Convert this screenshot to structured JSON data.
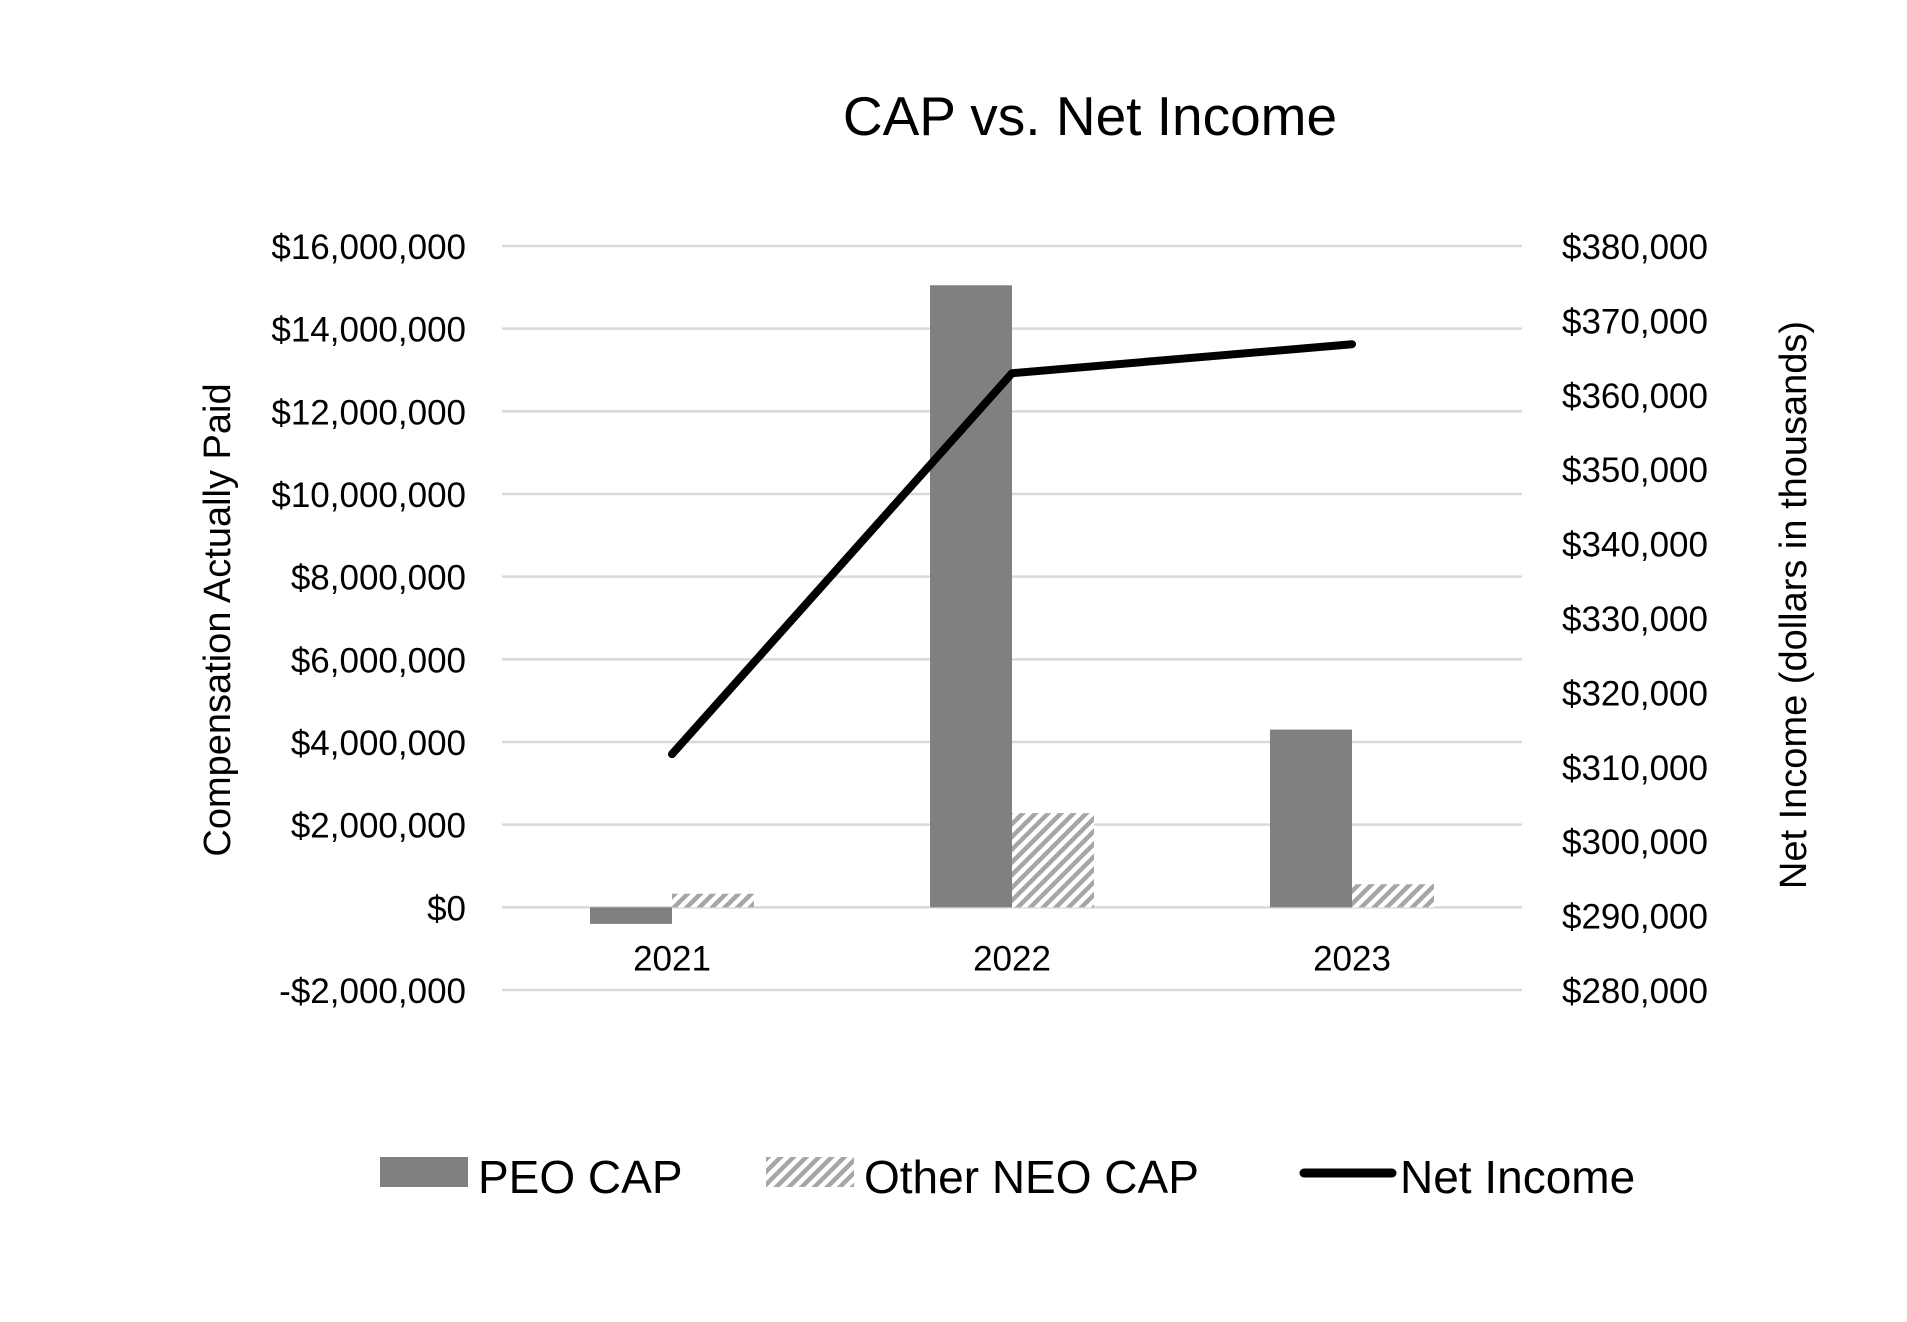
{
  "chart_data": {
    "type": "bar",
    "title": "CAP vs. Net Income",
    "xlabel": "",
    "ylabel": "Compensation Actually Paid",
    "y2label": "Net Income (dollars in thousands)",
    "categories": [
      "2021",
      "2022",
      "2023"
    ],
    "ylim": [
      -2000000,
      16000000
    ],
    "y2lim": [
      280000,
      380000
    ],
    "yticks": [
      -2000000,
      0,
      2000000,
      4000000,
      6000000,
      8000000,
      10000000,
      12000000,
      14000000,
      16000000
    ],
    "ytick_labels": [
      "-$2,000,000",
      "$0",
      "$2,000,000",
      "$4,000,000",
      "$6,000,000",
      "$8,000,000",
      "$10,000,000",
      "$12,000,000",
      "$14,000,000",
      "$16,000,000"
    ],
    "y2ticks": [
      280000,
      290000,
      300000,
      310000,
      320000,
      330000,
      340000,
      350000,
      360000,
      370000,
      380000
    ],
    "y2tick_labels": [
      "$280,000",
      "$290,000",
      "$300,000",
      "$310,000",
      "$320,000",
      "$330,000",
      "$340,000",
      "$350,000",
      "$360,000",
      "$370,000",
      "$380,000"
    ],
    "grid": true,
    "legend_position": "bottom",
    "series": [
      {
        "name": "PEO CAP",
        "type": "bar",
        "axis": "left",
        "style": "solid",
        "color": "#808080",
        "values": [
          -400000,
          15050000,
          4300000
        ]
      },
      {
        "name": "Other NEO CAP",
        "type": "bar",
        "axis": "left",
        "style": "hatched",
        "color": "#a6a6a6",
        "values": [
          330000,
          2280000,
          560000
        ]
      },
      {
        "name": "Net Income",
        "type": "line",
        "axis": "right",
        "color": "#000000",
        "values": [
          311700,
          362900,
          366800
        ]
      }
    ]
  }
}
